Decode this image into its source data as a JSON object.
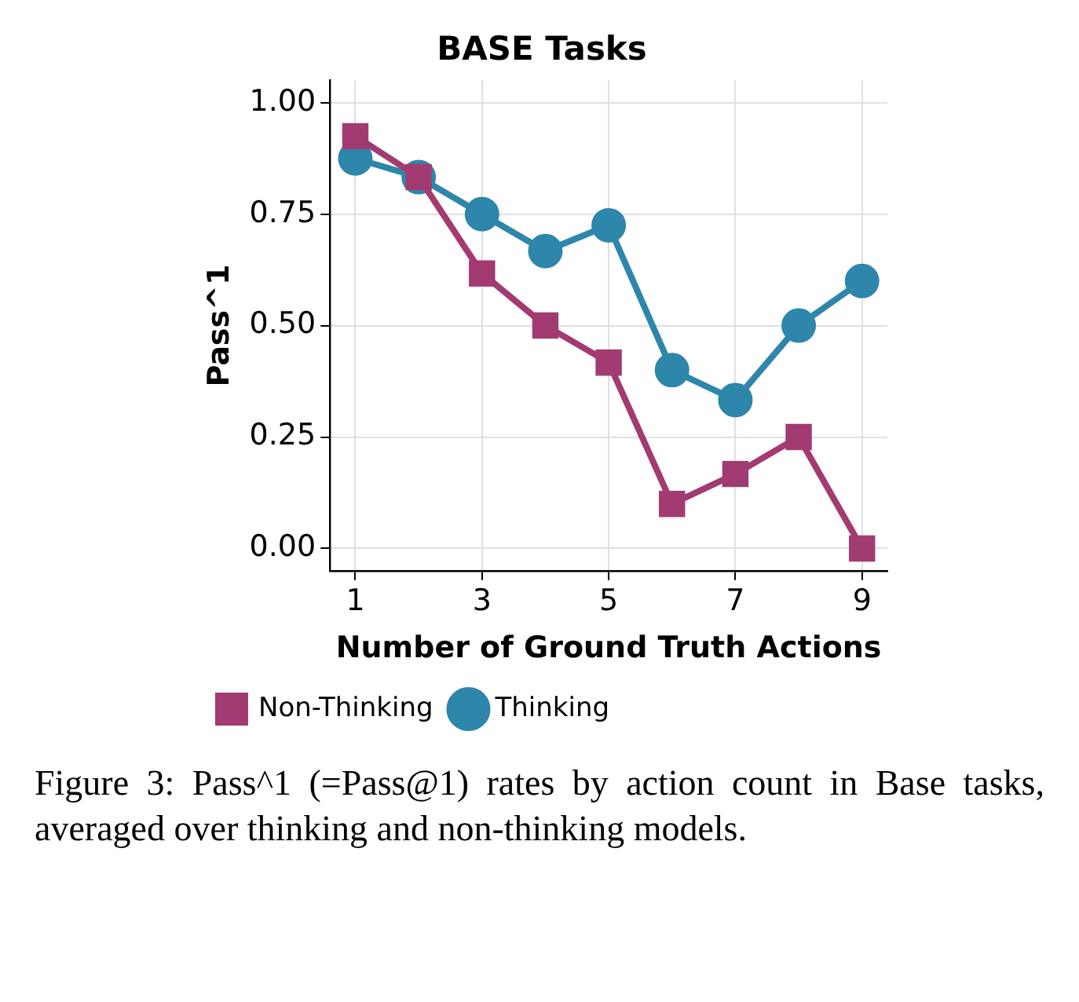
{
  "chart_data": {
    "type": "line",
    "title": "BASE Tasks",
    "xlabel": "Number of Ground Truth Actions",
    "ylabel": "Pass^1",
    "x": [
      1,
      2,
      3,
      4,
      5,
      6,
      7,
      8,
      9
    ],
    "series": [
      {
        "name": "Thinking",
        "color": "#2e86ab",
        "marker": "circle",
        "values": [
          0.875,
          0.833,
          0.75,
          0.667,
          0.725,
          0.4,
          0.333,
          0.5,
          0.6
        ]
      },
      {
        "name": "Non-Thinking",
        "color": "#a23b72",
        "marker": "square",
        "values": [
          0.925,
          0.833,
          0.617,
          0.5,
          0.417,
          0.1,
          0.167,
          0.25,
          0.0
        ]
      }
    ],
    "xlim": [
      0.6,
      9.4
    ],
    "xticks": [
      1,
      3,
      5,
      7,
      9
    ],
    "ylim": [
      -0.05,
      1.05
    ],
    "yticks": [
      {
        "value": 0,
        "label": "0.00"
      },
      {
        "value": 0.25,
        "label": "0.25"
      },
      {
        "value": 0.5,
        "label": "0.50"
      },
      {
        "value": 0.75,
        "label": "0.75"
      },
      {
        "value": 1,
        "label": "1.00"
      }
    ],
    "grid": true,
    "legend": "bottom",
    "line_style": "solid",
    "annotations": [
      "Figure 3: Pass^1 (=Pass@1) rates by action count in Base tasks, averaged over thinking and non-thinking models."
    ]
  }
}
